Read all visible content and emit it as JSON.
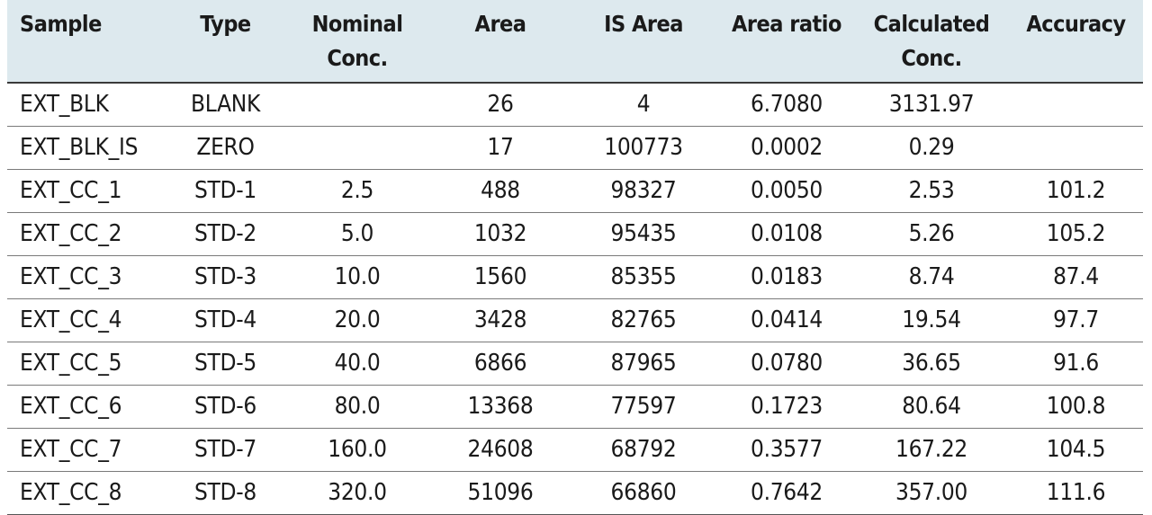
{
  "table": {
    "headers": [
      [
        "Sample"
      ],
      [
        "Type"
      ],
      [
        "Nominal",
        "Conc."
      ],
      [
        "Area"
      ],
      [
        "IS Area"
      ],
      [
        "Area ratio"
      ],
      [
        "Calculated",
        "Conc."
      ],
      [
        "Accuracy"
      ]
    ],
    "rows": [
      [
        "EXT_BLK",
        "BLANK",
        "",
        "26",
        "4",
        "6.7080",
        "3131.97",
        ""
      ],
      [
        "EXT_BLK_IS",
        "ZERO",
        "",
        "17",
        "100773",
        "0.0002",
        "0.29",
        ""
      ],
      [
        "EXT_CC_1",
        "STD-1",
        "2.5",
        "488",
        "98327",
        "0.0050",
        "2.53",
        "101.2"
      ],
      [
        "EXT_CC_2",
        "STD-2",
        "5.0",
        "1032",
        "95435",
        "0.0108",
        "5.26",
        "105.2"
      ],
      [
        "EXT_CC_3",
        "STD-3",
        "10.0",
        "1560",
        "85355",
        "0.0183",
        "8.74",
        "87.4"
      ],
      [
        "EXT_CC_4",
        "STD-4",
        "20.0",
        "3428",
        "82765",
        "0.0414",
        "19.54",
        "97.7"
      ],
      [
        "EXT_CC_5",
        "STD-5",
        "40.0",
        "6866",
        "87965",
        "0.0780",
        "36.65",
        "91.6"
      ],
      [
        "EXT_CC_6",
        "STD-6",
        "80.0",
        "13368",
        "77597",
        "0.1723",
        "80.64",
        "100.8"
      ],
      [
        "EXT_CC_7",
        "STD-7",
        "160.0",
        "24608",
        "68792",
        "0.3577",
        "167.22",
        "104.5"
      ],
      [
        "EXT_CC_8",
        "STD-8",
        "320.0",
        "51096",
        "66860",
        "0.7642",
        "357.00",
        "111.6"
      ]
    ]
  }
}
